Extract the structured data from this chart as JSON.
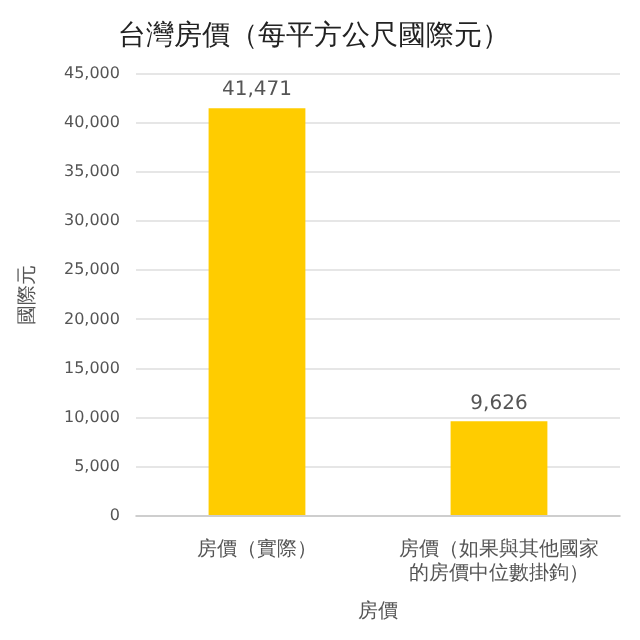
{
  "chart_data": {
    "type": "bar",
    "title": "台灣房價（每平方公尺國際元）",
    "xlabel": "房價",
    "ylabel": "國際元",
    "categories": [
      "房價（實際）",
      "房價（如果與其他國家的房價中位數掛鉤）"
    ],
    "values": [
      41471,
      9626
    ],
    "value_labels": [
      "41,471",
      "9,626"
    ],
    "color": "#ffcc00",
    "ylim": [
      0,
      45000
    ],
    "yticks": [
      0,
      {
        "value": 5000,
        "label": "5,000"
      },
      {
        "value": 10000,
        "label": "10,000"
      },
      {
        "value": 15000,
        "label": "15,000"
      },
      {
        "value": 20000,
        "label": "20,000"
      },
      {
        "value": 25000,
        "label": "25,000"
      },
      {
        "value": 30000,
        "label": "30,000"
      },
      {
        "value": 35000,
        "label": "35,000"
      },
      {
        "value": 40000,
        "label": "40,000"
      },
      {
        "value": 45000,
        "label": "45,000"
      }
    ],
    "grid": "y",
    "legend": false
  }
}
